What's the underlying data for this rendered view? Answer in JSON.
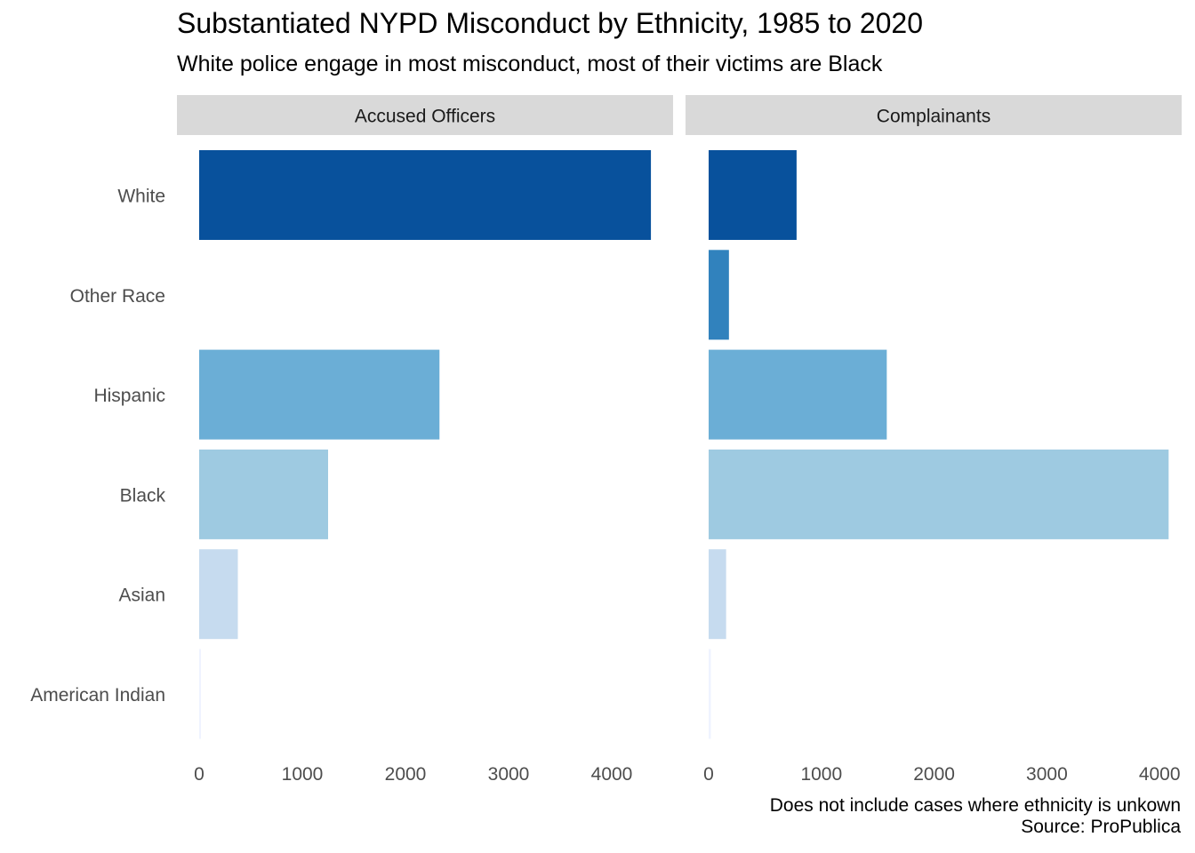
{
  "chart_data": {
    "type": "bar",
    "orientation": "horizontal",
    "title": "Substantiated NYPD Misconduct by Ethnicity, 1985 to 2020",
    "subtitle": "White police engage in most misconduct, most of their victims are Black",
    "categories": [
      "White",
      "Other Race",
      "Hispanic",
      "Black",
      "Asian",
      "American Indian"
    ],
    "panels": [
      {
        "label": "Accused Officers",
        "values": [
          4380,
          0,
          2330,
          1250,
          375,
          10
        ],
        "xlim": [
          0,
          4600
        ],
        "ticks": [
          0,
          1000,
          2000,
          3000,
          4000
        ]
      },
      {
        "label": "Complainants",
        "values": [
          780,
          180,
          1580,
          4080,
          155,
          20
        ],
        "xlim": [
          0,
          4300
        ],
        "ticks": [
          0,
          1000,
          2000,
          3000,
          4000
        ]
      }
    ],
    "colors": {
      "White": "#08519c",
      "Other Race": "#3182bd",
      "Hispanic": "#6baed6",
      "Black": "#9ecae1",
      "Asian": "#c6dbef",
      "American Indian": "#eff3ff"
    },
    "grid": false,
    "legend": "none",
    "caption": [
      "Does not include cases where ethnicity is unkown",
      "Source: ProPublica"
    ]
  }
}
